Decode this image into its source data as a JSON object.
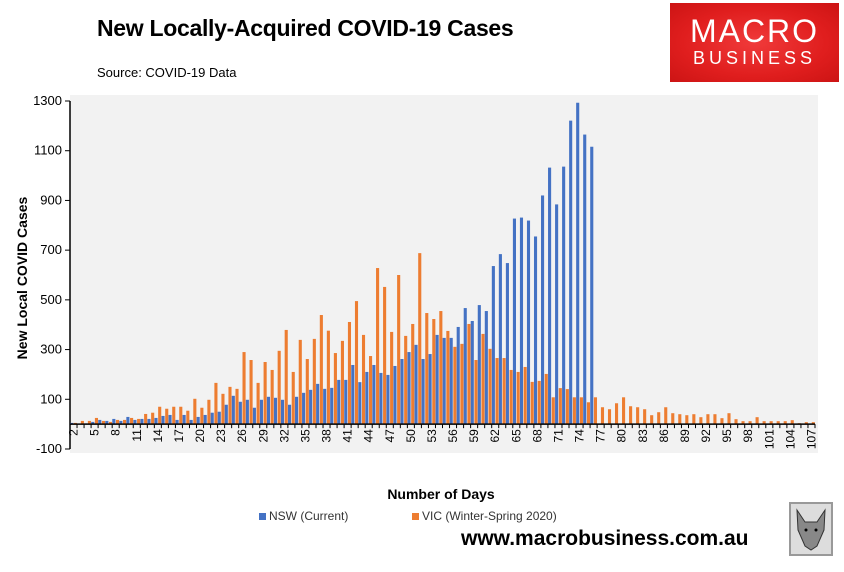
{
  "header": {
    "title": "New Locally-Acquired COVID-19 Cases",
    "source": "Source: COVID-19 Data"
  },
  "logo": {
    "line1": "MACRO",
    "line2": "BUSINESS",
    "color": "#e01e1e"
  },
  "footer": {
    "url": "www.macrobusiness.com.au"
  },
  "chart_data": {
    "type": "bar",
    "title": "New Locally-Acquired COVID-19 Cases",
    "xlabel": "Number of Days",
    "ylabel": "New Local COVID Cases",
    "ylim": [
      -100,
      1300
    ],
    "yticks": [
      1300,
      1100,
      900,
      700,
      500,
      300,
      100,
      -100
    ],
    "x_start": 2,
    "x_end": 107,
    "xtick_step": 3,
    "grid": false,
    "legend": "bottom",
    "series": [
      {
        "name": "NSW (Current)",
        "color": "#4472c4",
        "start_day": 2,
        "values": [
          5,
          2,
          3,
          9,
          17,
          13,
          21,
          13,
          29,
          17,
          21,
          21,
          25,
          33,
          37,
          17,
          37,
          17,
          29,
          37,
          46,
          50,
          78,
          114,
          90,
          98,
          66,
          98,
          110,
          106,
          98,
          78,
          110,
          126,
          138,
          162,
          142,
          146,
          178,
          178,
          238,
          169,
          210,
          238,
          206,
          198,
          234,
          262,
          290,
          319,
          262,
          282,
          359,
          347,
          347,
          391,
          467,
          415,
          479,
          455,
          636,
          684,
          648,
          827,
          831,
          819,
          755,
          920,
          1032,
          884,
          1036,
          1221,
          1293,
          1165,
          1116
        ]
      },
      {
        "name": "VIC (Winter-Spring 2020)",
        "color": "#ed7d31",
        "start_day": 2,
        "values": [
          5,
          13,
          13,
          25,
          13,
          9,
          17,
          17,
          25,
          21,
          41,
          46,
          70,
          62,
          70,
          70,
          54,
          102,
          66,
          98,
          166,
          122,
          150,
          142,
          290,
          258,
          166,
          250,
          218,
          295,
          379,
          210,
          339,
          262,
          343,
          439,
          376,
          286,
          335,
          411,
          495,
          359,
          274,
          628,
          552,
          371,
          600,
          355,
          403,
          688,
          447,
          423,
          455,
          375,
          311,
          323,
          403,
          258,
          363,
          303,
          266,
          266,
          218,
          210,
          230,
          170,
          174,
          202,
          108,
          145,
          141,
          108,
          108,
          88,
          108,
          68,
          60,
          84,
          108,
          72,
          68,
          60,
          36,
          48,
          68,
          44,
          40,
          36,
          40,
          28,
          40,
          40,
          24,
          44,
          20,
          12,
          12,
          28,
          12,
          12,
          12,
          12,
          16,
          4,
          8,
          8
        ]
      }
    ]
  }
}
